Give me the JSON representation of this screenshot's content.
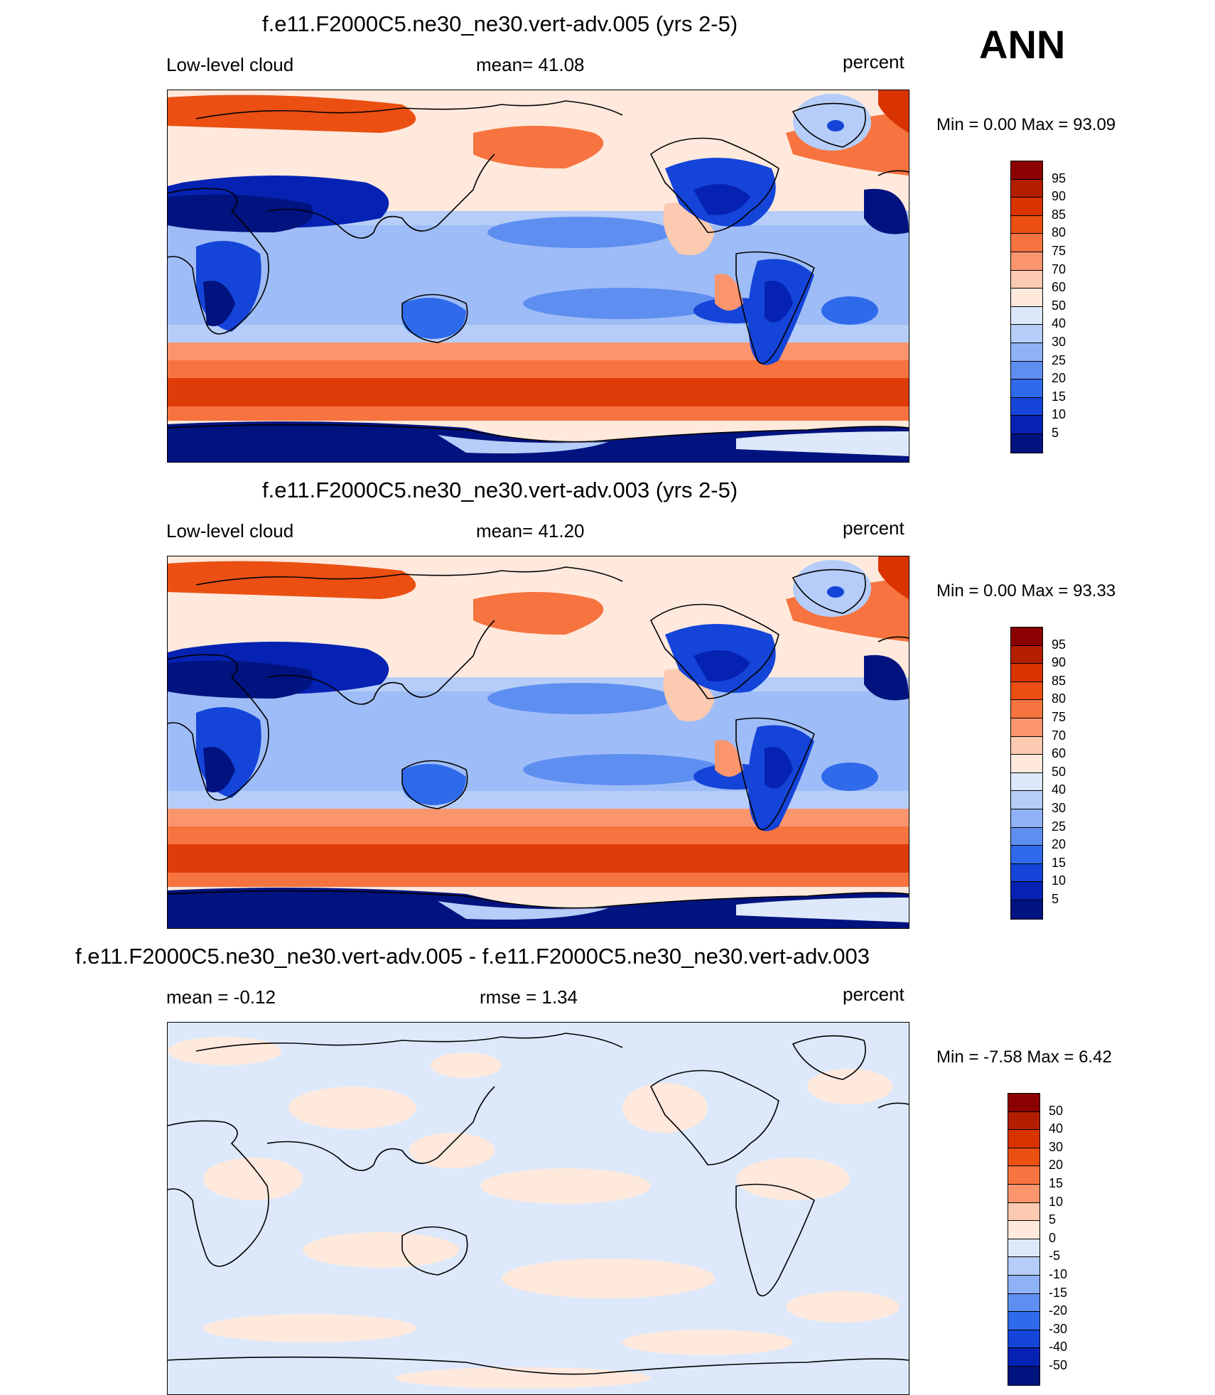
{
  "season_label": "ANN",
  "colors": {
    "abs_scale": [
      "#8b0000",
      "#b41e00",
      "#d93300",
      "#eb4f12",
      "#f7733f",
      "#fb956e",
      "#fccab0",
      "#fee9dc",
      "#dde9fb",
      "#b5cdf8",
      "#8fb1f6",
      "#5e8ff0",
      "#2f6aeb",
      "#1444d8",
      "#0522b2",
      "#01137f"
    ],
    "diff_scale": [
      "#8b0000",
      "#b41e00",
      "#d93300",
      "#eb4f12",
      "#f7733f",
      "#fb956e",
      "#fccab0",
      "#fee9dc",
      "#dde9fb",
      "#b5cdf8",
      "#8fb1f6",
      "#5e8ff0",
      "#2f6aeb",
      "#1444d8",
      "#0522b2",
      "#01137f"
    ]
  },
  "panels": [
    {
      "title": "f.e11.F2000C5.ne30_ne30.vert-adv.005 (yrs 2-5)",
      "left_label": "Low-level cloud",
      "center_label": "mean=  41.08",
      "right_label": "percent",
      "minmax": "Min =   0.00 Max =  93.09",
      "colorbar_labels": [
        "95",
        "90",
        "85",
        "80",
        "75",
        "70",
        "60",
        "50",
        "40",
        "30",
        "25",
        "20",
        "15",
        "10",
        "5"
      ],
      "kind": "abs"
    },
    {
      "title": "f.e11.F2000C5.ne30_ne30.vert-adv.003 (yrs 2-5)",
      "left_label": "Low-level cloud",
      "center_label": "mean=  41.20",
      "right_label": "percent",
      "minmax": "Min =   0.00 Max =  93.33",
      "colorbar_labels": [
        "95",
        "90",
        "85",
        "80",
        "75",
        "70",
        "60",
        "50",
        "40",
        "30",
        "25",
        "20",
        "15",
        "10",
        "5"
      ],
      "kind": "abs"
    },
    {
      "title": "f.e11.F2000C5.ne30_ne30.vert-adv.005 - f.e11.F2000C5.ne30_ne30.vert-adv.003",
      "left_label": "mean =  -0.12",
      "center_label": "rmse =   1.34",
      "right_label": "percent",
      "minmax": "Min =  -7.58 Max =   6.42",
      "colorbar_labels": [
        "50",
        "40",
        "30",
        "20",
        "15",
        "10",
        "5",
        "0",
        "-5",
        "-10",
        "-15",
        "-20",
        "-30",
        "-40",
        "-50"
      ],
      "kind": "diff"
    }
  ]
}
